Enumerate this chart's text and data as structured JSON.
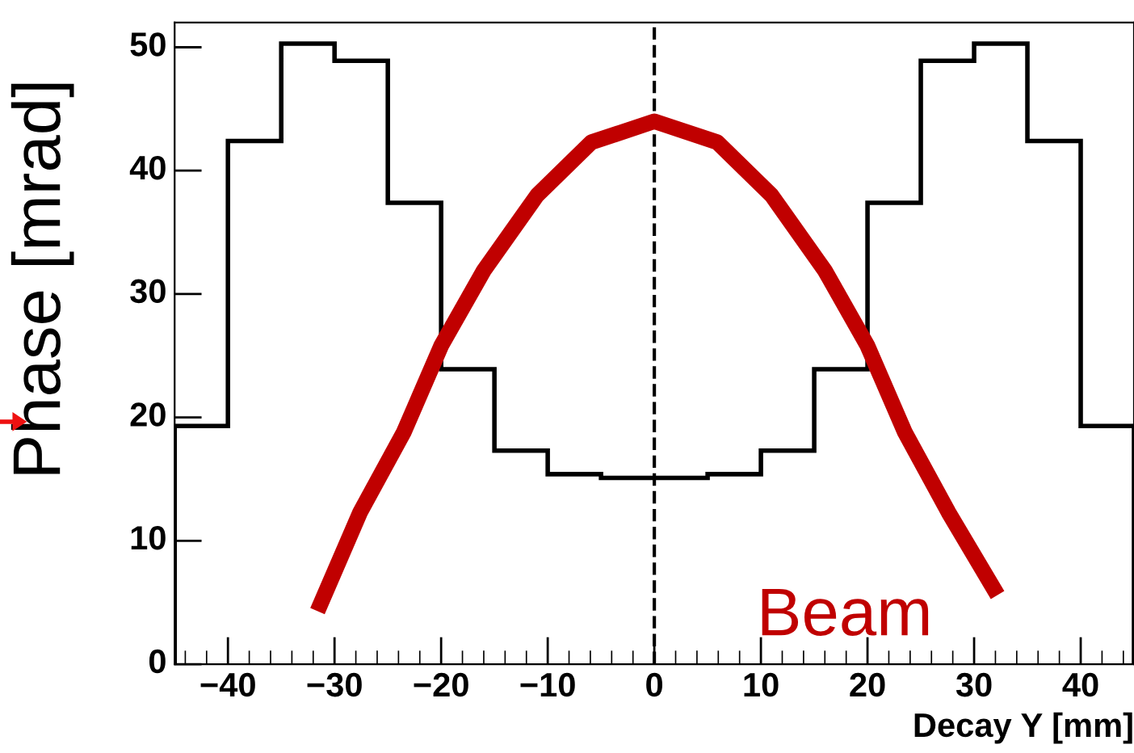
{
  "chart_data": {
    "type": "histogram",
    "ylabel": "Phase [mrad]",
    "xlabel": "Decay Y [mm]",
    "series": [
      {
        "color": "#000000",
        "bins": [
          -45,
          -40,
          -35,
          -30,
          -25,
          -20,
          -15,
          -10,
          -5,
          0,
          5,
          10,
          15,
          20,
          25,
          30,
          35,
          40,
          45
        ],
        "values": [
          19.3,
          42.4,
          50.3,
          48.9,
          37.4,
          23.9,
          17.3,
          15.4,
          15.1,
          15.1,
          15.4,
          17.3,
          23.9,
          37.4,
          48.9,
          50.3,
          42.4,
          19.3
        ]
      },
      {
        "type": "line",
        "name": "Beam",
        "color": "#c00000",
        "x": [
          -31.6,
          -27.6,
          -23.5,
          -20,
          -16,
          -11,
          -5.9,
          0,
          5.9,
          11,
          16,
          20,
          23.5,
          27.6,
          32.2
        ],
        "values": [
          4.3,
          12.3,
          18.8,
          25.8,
          31.9,
          38.0,
          42.3,
          44.0,
          42.3,
          38.0,
          31.9,
          25.8,
          18.8,
          12.3,
          5.6
        ]
      }
    ],
    "xlim": [
      -45,
      45
    ],
    "ylim": [
      0,
      52
    ],
    "xticks": [
      {
        "value": -40,
        "label": "−40"
      },
      {
        "value": -30,
        "label": "−30"
      },
      {
        "value": -20,
        "label": "−20"
      },
      {
        "value": -10,
        "label": "−10"
      },
      0,
      10,
      20,
      30,
      40
    ],
    "yticks": [
      0,
      10,
      20,
      30,
      40,
      50
    ],
    "ref_lines": [
      {
        "axis": "x",
        "value": 0,
        "label": null,
        "color": "#000000",
        "line_style": "dashed"
      }
    ],
    "grid": false,
    "legend": false
  }
}
